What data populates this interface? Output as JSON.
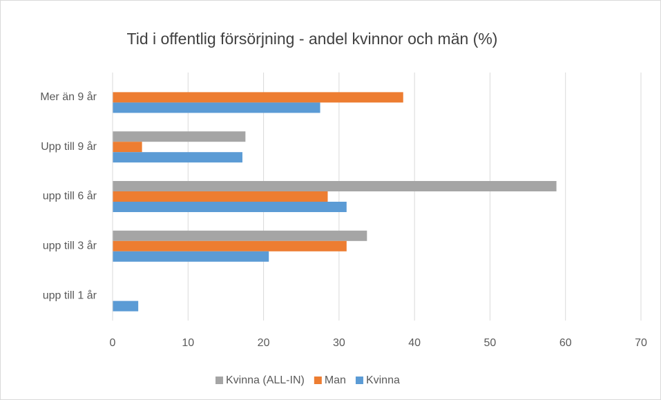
{
  "chart_data": {
    "type": "bar",
    "orientation": "horizontal",
    "title": "Tid i offentlig försörjning - andel kvinnor och män (%)",
    "categories": [
      "Mer än 9 år",
      "Upp till 9 år",
      "upp till 6 år",
      "upp till 3 år",
      "upp till 1 år"
    ],
    "series": [
      {
        "name": "Kvinna (ALL-IN)",
        "color": "#a5a5a5",
        "values": [
          null,
          17.6,
          58.8,
          33.7,
          null
        ]
      },
      {
        "name": "Man",
        "color": "#ed7d31",
        "values": [
          38.5,
          3.9,
          28.5,
          31.0,
          null
        ]
      },
      {
        "name": "Kvinna",
        "color": "#5b9bd5",
        "values": [
          27.5,
          17.2,
          31.0,
          20.7,
          3.4
        ]
      }
    ],
    "xlim": [
      0,
      70
    ],
    "xticks": [
      0,
      10,
      20,
      30,
      40,
      50,
      60,
      70
    ],
    "grid": true,
    "legend": "bottom"
  }
}
